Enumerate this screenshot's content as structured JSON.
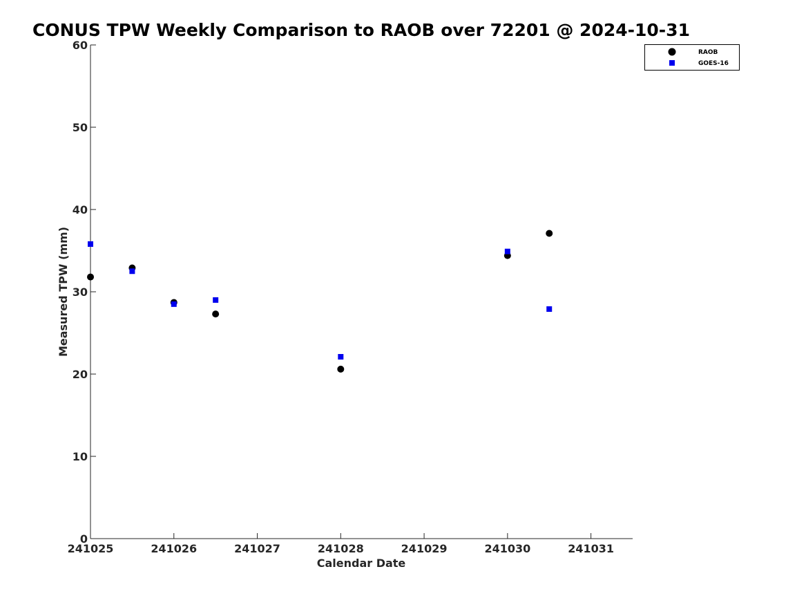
{
  "chart_data": {
    "type": "scatter",
    "title": "CONUS TPW Weekly Comparison to RAOB over 72201 @ 2024-10-31",
    "xlabel": "Calendar Date",
    "ylabel": "Measured TPW (mm)",
    "x_tick_labels": [
      "241025",
      "241026",
      "241027",
      "241028",
      "241029",
      "241030",
      "241031"
    ],
    "xlim": [
      0,
      6.5
    ],
    "ylim": [
      0,
      60
    ],
    "y_ticks": [
      0,
      10,
      20,
      30,
      40,
      50,
      60
    ],
    "grid": false,
    "legend": "top-right",
    "series": [
      {
        "name": "RAOB",
        "marker": "circle",
        "color": "#000000",
        "x": [
          0,
          0.5,
          1,
          1.5,
          3,
          5,
          5.5
        ],
        "y": [
          31.8,
          32.9,
          28.7,
          27.3,
          20.6,
          34.4,
          37.1
        ]
      },
      {
        "name": "GOES-16",
        "marker": "square",
        "color": "#0000ee",
        "x": [
          0,
          0.5,
          1,
          1.5,
          3,
          5,
          5.5
        ],
        "y": [
          35.8,
          32.5,
          28.5,
          29.0,
          22.1,
          34.9,
          27.9
        ]
      }
    ]
  }
}
